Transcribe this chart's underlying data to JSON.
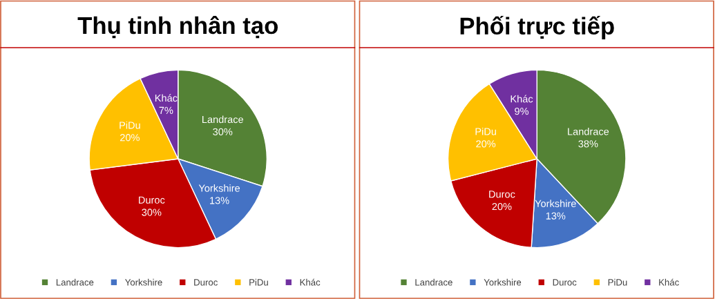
{
  "chart_data": [
    {
      "type": "pie",
      "title": "Thụ tinh nhân tạo",
      "categories": [
        "Landrace",
        "Yorkshire",
        "Duroc",
        "PiDu",
        "Khác"
      ],
      "values": [
        30,
        13,
        30,
        20,
        7
      ],
      "value_labels": [
        "30%",
        "13%",
        "30%",
        "20%",
        "7%"
      ],
      "colors": [
        "#548235",
        "#4472c4",
        "#c00000",
        "#ffc000",
        "#7030a0"
      ],
      "legend": "bottom"
    },
    {
      "type": "pie",
      "title": "Phối trực tiếp",
      "categories": [
        "Landrace",
        "Yorkshire",
        "Duroc",
        "PiDu",
        "Khác"
      ],
      "values": [
        38,
        13,
        20,
        20,
        9
      ],
      "value_labels": [
        "38%",
        "13%",
        "20%",
        "20%",
        "9%"
      ],
      "colors": [
        "#548235",
        "#4472c4",
        "#c00000",
        "#ffc000",
        "#7030a0"
      ],
      "legend": "bottom"
    }
  ]
}
